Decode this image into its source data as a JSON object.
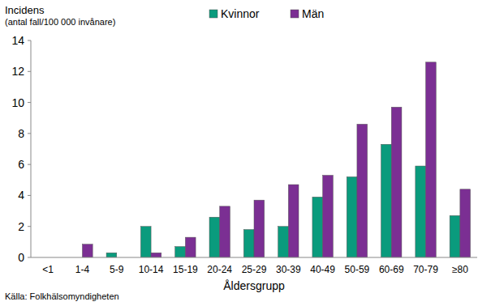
{
  "chart_data": {
    "type": "bar",
    "ylabel": "Incidens",
    "ylabel_unit": "(antal fall/100 000 invånare)",
    "xlabel": "Åldersgrupp",
    "source": "Källa: Folkhälsomyndigheten",
    "categories": [
      "<1",
      "1-4",
      "5-9",
      "10-14",
      "15-19",
      "20-24",
      "25-29",
      "30-39",
      "40-49",
      "50-59",
      "60-69",
      "70-79",
      "≥80"
    ],
    "series": [
      {
        "name": "Kvinnor",
        "color": "#0a9b7d",
        "values": [
          0,
          0,
          0.3,
          2.0,
          0.7,
          2.6,
          1.8,
          2.0,
          3.9,
          5.2,
          7.3,
          5.9,
          2.7
        ]
      },
      {
        "name": "Män",
        "color": "#7b2f93",
        "values": [
          0,
          0.85,
          0,
          0.3,
          1.3,
          3.3,
          3.7,
          4.7,
          5.3,
          8.6,
          9.7,
          12.6,
          4.4
        ]
      }
    ],
    "ylim": [
      0,
      14
    ],
    "yticks": [
      0,
      2,
      4,
      6,
      8,
      10,
      12,
      14
    ],
    "grid": false,
    "legend": "top"
  }
}
